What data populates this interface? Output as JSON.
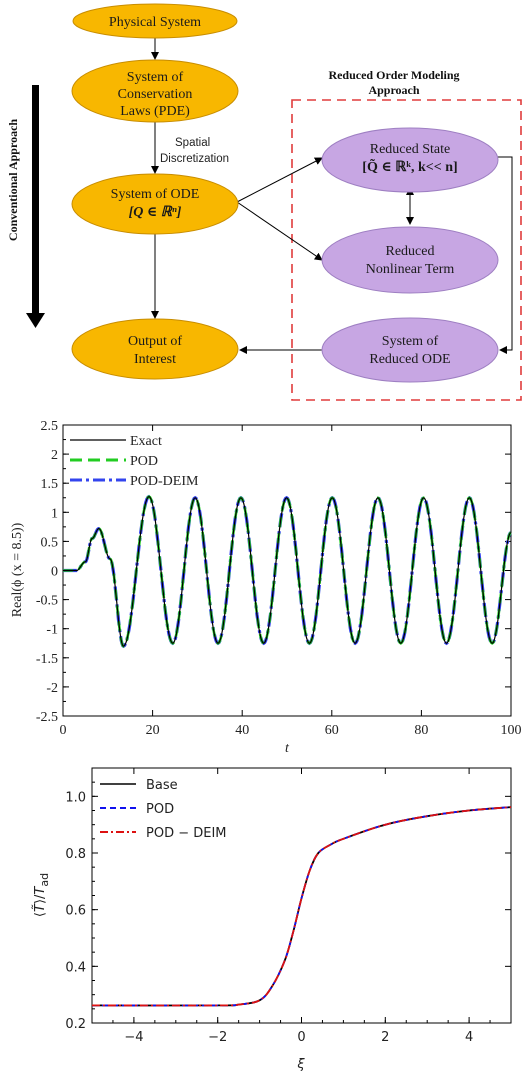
{
  "diagram": {
    "nodes": {
      "physical_system": [
        "Physical System"
      ],
      "conservation_laws": [
        "System of",
        "Conservation",
        "Laws (PDE)"
      ],
      "ode": [
        "System of ODE",
        "[Q ∈ ℝⁿ]"
      ],
      "output": [
        "Output of",
        "Interest"
      ],
      "reduced_state": [
        "Reduced State",
        "[Q̃ ∈ ℝᵏ, k<< n]"
      ],
      "reduced_nonlinear": [
        "Reduced",
        "Nonlinear Term"
      ],
      "reduced_ode": [
        "System of",
        "Reduced ODE"
      ]
    },
    "spatial_label": [
      "Spatial",
      "Discretization"
    ],
    "rom_title": [
      "Reduced Order Modeling",
      "Approach"
    ],
    "conventional_label": "Conventional Approach",
    "colors": {
      "orange": "#F8B700",
      "purple": "#C7A6E3",
      "dashed": "#E03C3C"
    }
  },
  "chart_data": [
    {
      "type": "line",
      "xlabel": "t",
      "ylabel": "Real(ϕ (x = 8.5))",
      "xlim": [
        0,
        100
      ],
      "ylim": [
        -2.5,
        2.5
      ],
      "xticks": [
        "0",
        "20",
        "40",
        "60",
        "80",
        "100"
      ],
      "yticks": [
        "2.5",
        "2",
        "1.5",
        "1",
        "0.5",
        "0",
        "-0.5",
        "-1",
        "-1.5",
        "-2",
        "-2.5"
      ],
      "legend_position": "top-left",
      "series": [
        {
          "name": "Exact",
          "color": "#000000",
          "style": "solid"
        },
        {
          "name": "POD",
          "color": "#22CC22",
          "style": "dashed"
        },
        {
          "name": "POD-DEIM",
          "color": "#3344EE",
          "style": "dashdot"
        }
      ],
      "x": [
        0,
        3,
        5,
        6.5,
        8,
        10.5,
        13.5,
        19.2,
        24.5,
        29.5,
        34.6,
        39.7,
        44.8,
        49.9,
        55,
        60.1,
        65.2,
        70.3,
        75.4,
        80.5,
        85.6,
        90.7,
        95.8,
        100
      ],
      "y": [
        0,
        0,
        0.15,
        0.55,
        0.72,
        0.2,
        -1.3,
        1.27,
        -1.25,
        1.25,
        -1.25,
        1.25,
        -1.25,
        1.25,
        -1.25,
        1.25,
        -1.25,
        1.25,
        -1.25,
        1.25,
        -1.25,
        1.25,
        -1.25,
        0.65
      ]
    },
    {
      "type": "line",
      "xlabel": "ξ",
      "ylabel": "⟨T̃⟩/T_ad",
      "xlim": [
        -5,
        5
      ],
      "ylim": [
        0.2,
        1.1
      ],
      "xticks": [
        "−4",
        "−2",
        "0",
        "2",
        "4"
      ],
      "yticks": [
        "1.0",
        "0.8",
        "0.6",
        "0.4",
        "0.2"
      ],
      "legend_position": "top-left",
      "series": [
        {
          "name": "Base",
          "color": "#000000",
          "style": "solid"
        },
        {
          "name": "POD",
          "color": "#1111EE",
          "style": "dashed"
        },
        {
          "name": "POD − DEIM",
          "color": "#DD1111",
          "style": "dashdot"
        }
      ],
      "x": [
        -5,
        -2,
        -1.5,
        -1,
        -0.7,
        -0.4,
        -0.2,
        0,
        0.2,
        0.4,
        0.7,
        1,
        2,
        3,
        4,
        5
      ],
      "y": [
        0.262,
        0.262,
        0.265,
        0.28,
        0.33,
        0.42,
        0.52,
        0.64,
        0.74,
        0.8,
        0.83,
        0.85,
        0.9,
        0.93,
        0.95,
        0.962
      ]
    }
  ]
}
